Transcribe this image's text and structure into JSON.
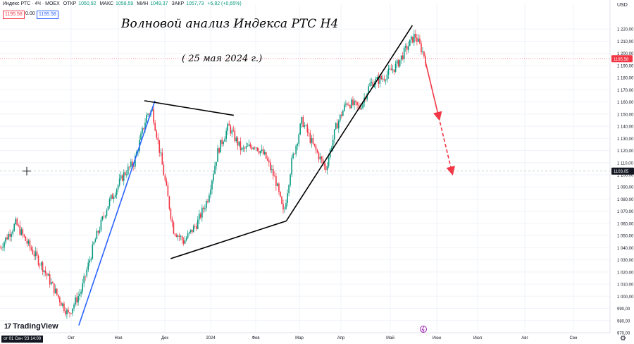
{
  "header": {
    "symbol": "Индекс РТС · 4Ч · MOEX",
    "ohlc": [
      {
        "k": "ОТКР",
        "v": "1050,92"
      },
      {
        "k": "МАКС",
        "v": "1058,59"
      },
      {
        "k": "МИН",
        "v": "1049,37"
      },
      {
        "k": "ЗАКР",
        "v": "1057,73"
      }
    ],
    "change": "+6,82 (+0,65%)",
    "bid": "1195.58",
    "spread": "0.00",
    "ask": "1195.58"
  },
  "currency": "USD",
  "brand": "TradingView",
  "range_label": "от 01 Сен '23 14:00",
  "annotations": {
    "title": "Волновой анализ Индекса РТС Н4",
    "date": "( 25 мая 2024 г.)"
  },
  "colors": {
    "up": "#089981",
    "down": "#f23645",
    "trend_blue": "#2962ff",
    "trend_black": "#000000",
    "forecast_red": "#f23645",
    "price_label": "#f23645",
    "cursor_label": "#131722"
  },
  "chart_data": {
    "type": "candlestick",
    "title": "",
    "ylim": [
      970,
      1230
    ],
    "yticks": [
      "970,00",
      "980,00",
      "990,00",
      "1 000,00",
      "1 010,00",
      "1 020,00",
      "1 030,00",
      "1 040,00",
      "1 050,00",
      "1 060,00",
      "1 070,00",
      "1 080,00",
      "1 090,00",
      "1 100,00",
      "1 110,00",
      "1 120,00",
      "1 130,00",
      "1 140,00",
      "1 150,00",
      "1 160,00",
      "1 170,00",
      "1 180,00",
      "1 190,00",
      "1 200,00",
      "1 210,00",
      "1 220,00"
    ],
    "xticks": [
      "Окт",
      "Ноя",
      "Дек",
      "2024",
      "Фев",
      "Мар",
      "Апр",
      "Май",
      "Июн",
      "Июл",
      "Авг",
      "Сен"
    ],
    "last_price": "1195,58",
    "cursor_price": "1103,05",
    "price_path": [
      {
        "t": 0,
        "v": 1040
      },
      {
        "t": 6,
        "v": 1060
      },
      {
        "t": 10,
        "v": 1045
      },
      {
        "t": 16,
        "v": 1025
      },
      {
        "t": 22,
        "v": 1000
      },
      {
        "t": 26,
        "v": 985
      },
      {
        "t": 31,
        "v": 1005
      },
      {
        "t": 36,
        "v": 1045
      },
      {
        "t": 41,
        "v": 1075
      },
      {
        "t": 47,
        "v": 1100
      },
      {
        "t": 51,
        "v": 1110
      },
      {
        "t": 56,
        "v": 1150
      },
      {
        "t": 58,
        "v": 1153
      },
      {
        "t": 62,
        "v": 1105
      },
      {
        "t": 66,
        "v": 1055
      },
      {
        "t": 70,
        "v": 1045
      },
      {
        "t": 75,
        "v": 1060
      },
      {
        "t": 79,
        "v": 1080
      },
      {
        "t": 83,
        "v": 1120
      },
      {
        "t": 87,
        "v": 1140
      },
      {
        "t": 92,
        "v": 1120
      },
      {
        "t": 97,
        "v": 1125
      },
      {
        "t": 101,
        "v": 1115
      },
      {
        "t": 105,
        "v": 1095
      },
      {
        "t": 108,
        "v": 1067
      },
      {
        "t": 111,
        "v": 1110
      },
      {
        "t": 115,
        "v": 1145
      },
      {
        "t": 119,
        "v": 1125
      },
      {
        "t": 124,
        "v": 1105
      },
      {
        "t": 128,
        "v": 1140
      },
      {
        "t": 132,
        "v": 1160
      },
      {
        "t": 137,
        "v": 1155
      },
      {
        "t": 141,
        "v": 1175
      },
      {
        "t": 146,
        "v": 1180
      },
      {
        "t": 151,
        "v": 1190
      },
      {
        "t": 155,
        "v": 1205
      },
      {
        "t": 158,
        "v": 1215
      },
      {
        "t": 162,
        "v": 1196
      }
    ],
    "lines": [
      {
        "name": "trend-line-blue",
        "color": "blue",
        "from": {
          "t": 30,
          "v": 976
        },
        "to": {
          "t": 59,
          "v": 1161
        }
      },
      {
        "name": "triangle-upper-line",
        "color": "black",
        "from": {
          "t": 55,
          "v": 1161
        },
        "to": {
          "t": 89,
          "v": 1149
        }
      },
      {
        "name": "triangle-lower-line",
        "color": "black",
        "from": {
          "t": 65,
          "v": 1031
        },
        "to": {
          "t": 109,
          "v": 1062
        }
      },
      {
        "name": "channel-line",
        "color": "black",
        "from": {
          "t": 109,
          "v": 1062
        },
        "to": {
          "t": 157,
          "v": 1223
        }
      }
    ],
    "forecast": [
      {
        "style": "solid",
        "from": {
          "t": 162,
          "v": 1193
        },
        "to": {
          "t": 167,
          "v": 1148
        }
      },
      {
        "style": "dashed",
        "from": {
          "t": 167,
          "v": 1148
        },
        "to": {
          "t": 172,
          "v": 1103
        }
      }
    ]
  }
}
